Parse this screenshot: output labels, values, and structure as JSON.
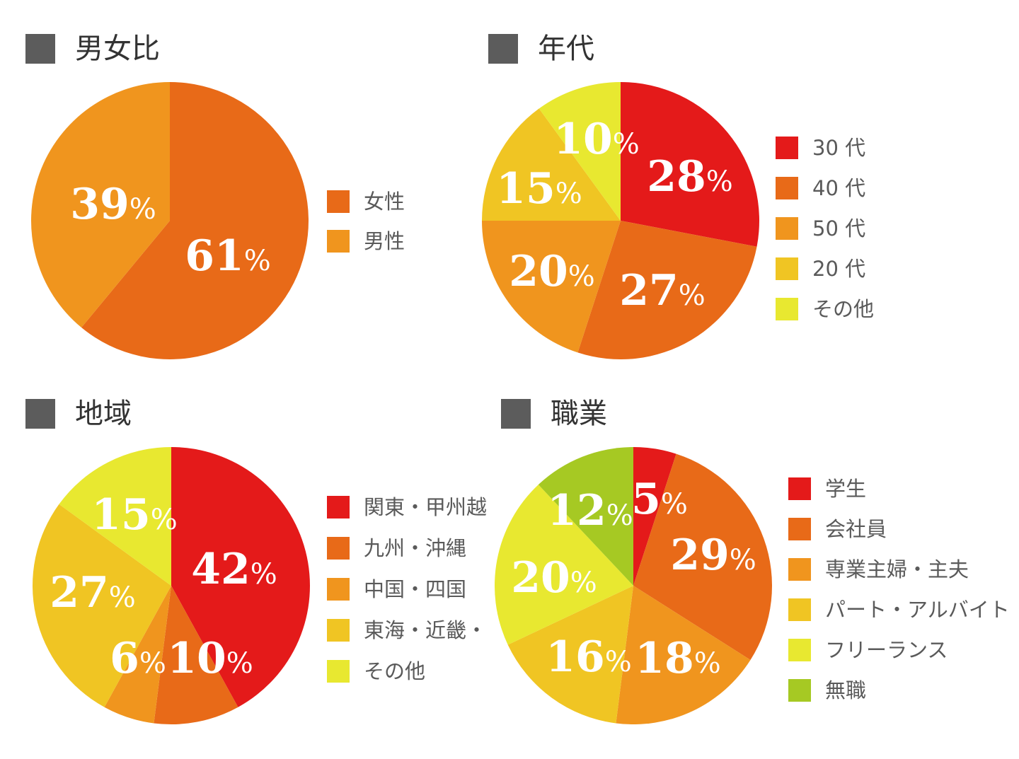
{
  "chart_data": [
    {
      "id": "gender",
      "type": "pie",
      "title": "男女比",
      "labels": [
        "女性",
        "男性"
      ],
      "values": [
        61,
        39
      ],
      "value_labels": [
        "61",
        "39"
      ],
      "percent_sign": "%",
      "colors": [
        "#e86a18",
        "#f0951e"
      ],
      "legend_position": "right"
    },
    {
      "id": "age",
      "type": "pie",
      "title": "年代",
      "labels": [
        "30 代",
        "40 代",
        "50 代",
        "20 代",
        "その他"
      ],
      "values": [
        28,
        27,
        20,
        15,
        10
      ],
      "value_labels": [
        "28",
        "27",
        "20",
        "15",
        "10"
      ],
      "percent_sign": "%",
      "colors": [
        "#e41a1a",
        "#e86a18",
        "#f0951e",
        "#f0c523",
        "#e8e830"
      ],
      "legend_position": "right"
    },
    {
      "id": "region",
      "type": "pie",
      "title": "地域",
      "labels": [
        "関東・甲州越",
        "九州・沖縄",
        "中国・四国",
        "東海・近畿・",
        "その他"
      ],
      "values": [
        42,
        10,
        6,
        27,
        15
      ],
      "value_labels": [
        "42",
        "10",
        "6",
        "27",
        "15"
      ],
      "percent_sign": "%",
      "colors": [
        "#e41a1a",
        "#e86a18",
        "#f0951e",
        "#f0c523",
        "#e8e830"
      ],
      "legend_position": "right"
    },
    {
      "id": "occupation",
      "type": "pie",
      "title": "職業",
      "labels": [
        "学生",
        "会社員",
        "専業主婦・主夫",
        "パート・アルバイト",
        "フリーランス",
        "無職"
      ],
      "values": [
        5,
        29,
        18,
        16,
        20,
        12
      ],
      "value_labels": [
        "5",
        "29",
        "18",
        "16",
        "20",
        "12"
      ],
      "percent_sign": "%",
      "colors": [
        "#e41a1a",
        "#e86a18",
        "#f0951e",
        "#f0c523",
        "#e8e830",
        "#a6c923"
      ],
      "legend_position": "right"
    }
  ]
}
